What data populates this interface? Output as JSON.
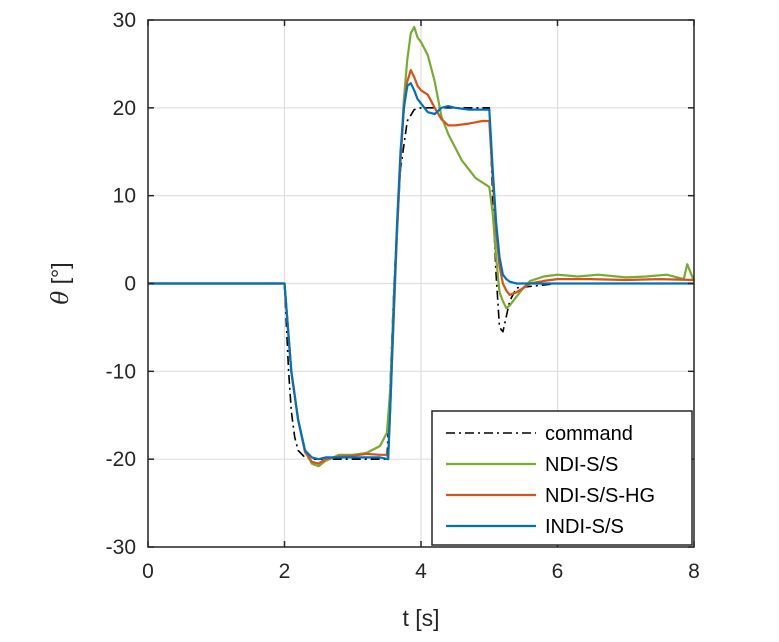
{
  "chart_data": {
    "type": "line",
    "xlabel": "t [s]",
    "ylabel_symbol": "θ",
    "ylabel_unit": " [°]",
    "xlim": [
      0,
      8
    ],
    "ylim": [
      -30,
      30
    ],
    "xticks": [
      0,
      2,
      4,
      6,
      8
    ],
    "yticks": [
      -30,
      -20,
      -10,
      0,
      10,
      20,
      30
    ],
    "xtick_labels": [
      "0",
      "2",
      "4",
      "6",
      "8"
    ],
    "ytick_labels": [
      "-30",
      "-20",
      "-10",
      "0",
      "10",
      "20",
      "30"
    ],
    "grid": true,
    "legend_position": "bottom-right",
    "series": [
      {
        "name": "command",
        "color": "#000000",
        "dash": "dash-dot",
        "x": [
          0,
          2.0,
          2.03,
          2.06,
          2.1,
          2.15,
          2.2,
          2.3,
          2.4,
          2.6,
          3.0,
          3.4,
          3.5,
          3.53,
          3.56,
          3.6,
          3.65,
          3.7,
          3.8,
          3.9,
          4.0,
          4.5,
          4.9,
          5.0,
          5.03,
          5.06,
          5.1,
          5.15,
          5.2,
          5.3,
          5.4,
          6.0,
          7.0,
          8.0
        ],
        "y": [
          0,
          0,
          -5,
          -10,
          -14.5,
          -17.5,
          -19,
          -19.8,
          -20,
          -20,
          -20,
          -20,
          -20,
          -15,
          -9,
          -1,
          7,
          13,
          18.5,
          19.8,
          20,
          20,
          20,
          20,
          14,
          8,
          1,
          -5,
          -5.5,
          -2,
          -0.5,
          0,
          0,
          0
        ]
      },
      {
        "name": "NDI-S/S",
        "color": "#77AC30",
        "x": [
          0,
          0.5,
          1.0,
          1.5,
          2.0,
          2.05,
          2.1,
          2.2,
          2.3,
          2.4,
          2.5,
          2.6,
          2.8,
          3.0,
          3.2,
          3.4,
          3.5,
          3.55,
          3.6,
          3.65,
          3.7,
          3.75,
          3.8,
          3.85,
          3.9,
          3.95,
          4.0,
          4.1,
          4.2,
          4.3,
          4.4,
          4.5,
          4.6,
          4.7,
          4.8,
          4.9,
          5.0,
          5.05,
          5.1,
          5.15,
          5.2,
          5.25,
          5.3,
          5.4,
          5.5,
          5.6,
          5.8,
          6.0,
          6.3,
          6.6,
          7.0,
          7.3,
          7.6,
          7.85,
          7.9,
          8.0
        ],
        "y": [
          0,
          0,
          0,
          0,
          0,
          -5,
          -10,
          -15.5,
          -19,
          -20.5,
          -20.8,
          -20.2,
          -19.5,
          -19.5,
          -19.3,
          -18.5,
          -17,
          -12,
          -2,
          6,
          14,
          21,
          25.5,
          28.5,
          29.2,
          28,
          27.5,
          26,
          23,
          19,
          17,
          15.5,
          14,
          13,
          12,
          11.5,
          11,
          8,
          3,
          -1,
          -2,
          -2.8,
          -2.5,
          -1.5,
          -0.5,
          0.3,
          0.8,
          1,
          0.8,
          1,
          0.7,
          0.8,
          1.0,
          0.5,
          2.2,
          0.3
        ]
      },
      {
        "name": "NDI-S/S-HG",
        "color": "#D95319",
        "x": [
          0,
          0.5,
          1.0,
          1.5,
          2.0,
          2.05,
          2.1,
          2.2,
          2.3,
          2.4,
          2.5,
          2.6,
          2.8,
          3.0,
          3.2,
          3.4,
          3.52,
          3.55,
          3.6,
          3.65,
          3.7,
          3.75,
          3.8,
          3.85,
          3.9,
          3.95,
          4.0,
          4.1,
          4.2,
          4.3,
          4.4,
          4.5,
          4.7,
          4.9,
          5.0,
          5.05,
          5.1,
          5.15,
          5.2,
          5.25,
          5.3,
          5.4,
          5.5,
          5.6,
          5.8,
          6.0,
          6.5,
          7.0,
          7.5,
          8.0
        ],
        "y": [
          0,
          0,
          0,
          0,
          0,
          -5,
          -10,
          -15.5,
          -19.2,
          -20.3,
          -20.5,
          -20,
          -19.7,
          -19.6,
          -19.4,
          -19.5,
          -19.5,
          -14,
          -4,
          6,
          14,
          20,
          23,
          24.3,
          23.5,
          22.5,
          22,
          21.5,
          20,
          18.7,
          18,
          18,
          18.2,
          18.5,
          18.5,
          12,
          6,
          2,
          0,
          -0.8,
          -1.3,
          -1,
          -0.5,
          0,
          0.3,
          0.5,
          0.5,
          0.4,
          0.5,
          0.4
        ]
      },
      {
        "name": "INDI-S/S",
        "color": "#0072BD",
        "x": [
          0,
          0.5,
          1.0,
          1.5,
          2.0,
          2.05,
          2.1,
          2.2,
          2.3,
          2.4,
          2.5,
          2.6,
          2.8,
          3.0,
          3.2,
          3.4,
          3.52,
          3.55,
          3.6,
          3.65,
          3.7,
          3.75,
          3.8,
          3.85,
          3.9,
          3.95,
          4.0,
          4.1,
          4.2,
          4.3,
          4.4,
          4.5,
          4.7,
          4.9,
          5.0,
          5.05,
          5.1,
          5.15,
          5.2,
          5.25,
          5.3,
          5.4,
          5.5,
          6.0,
          6.5,
          7.0,
          7.5,
          8.0
        ],
        "y": [
          0,
          0,
          0,
          0,
          0,
          -5,
          -10,
          -15.5,
          -19,
          -19.8,
          -20,
          -19.8,
          -19.8,
          -19.8,
          -19.8,
          -19.8,
          -20,
          -14,
          -3,
          7,
          15,
          20,
          22.5,
          22.8,
          22,
          21,
          20.5,
          19.5,
          19.3,
          20,
          20.2,
          20,
          19.8,
          19.8,
          19.8,
          13,
          7,
          3,
          1,
          0.5,
          0.2,
          0,
          0,
          0,
          0,
          0,
          0,
          0
        ]
      }
    ]
  }
}
